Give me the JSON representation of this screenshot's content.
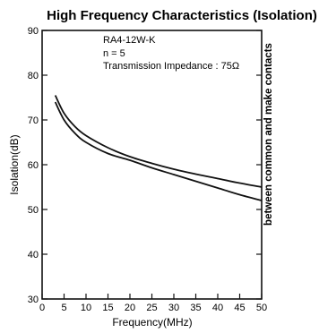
{
  "chart_data": {
    "type": "line",
    "title": "High Frequency Characteristics (Isolation)",
    "xlabel": "Frequency(MHz)",
    "ylabel": "Isolation(dB)",
    "xlim": [
      0,
      50
    ],
    "ylim": [
      30,
      90
    ],
    "x_ticks": [
      "0",
      "5",
      "10",
      "15",
      "20",
      "25",
      "30",
      "35",
      "40",
      "45",
      "50"
    ],
    "y_ticks": [
      "30",
      "40",
      "50",
      "60",
      "70",
      "80",
      "90"
    ],
    "annotations": {
      "model": "RA4-12W-K",
      "n": "n = 5",
      "impedance": "Transmission Impedance : 75Ω"
    },
    "side_label": "between common and make contacts",
    "grid": false,
    "series": [
      {
        "x": [
          3,
          5,
          7.5,
          10,
          15,
          20,
          25,
          30,
          35,
          40,
          45,
          50
        ],
        "values": [
          75.5,
          71.5,
          68.5,
          66.5,
          63.8,
          61.8,
          60.3,
          59.0,
          57.9,
          56.9,
          55.9,
          55.0
        ]
      },
      {
        "x": [
          3,
          5,
          7.5,
          10,
          15,
          20,
          25,
          30,
          35,
          40,
          45,
          50
        ],
        "values": [
          74.0,
          70.0,
          67.0,
          65.0,
          62.5,
          61.0,
          59.3,
          57.8,
          56.3,
          54.8,
          53.3,
          52.0
        ]
      }
    ]
  }
}
